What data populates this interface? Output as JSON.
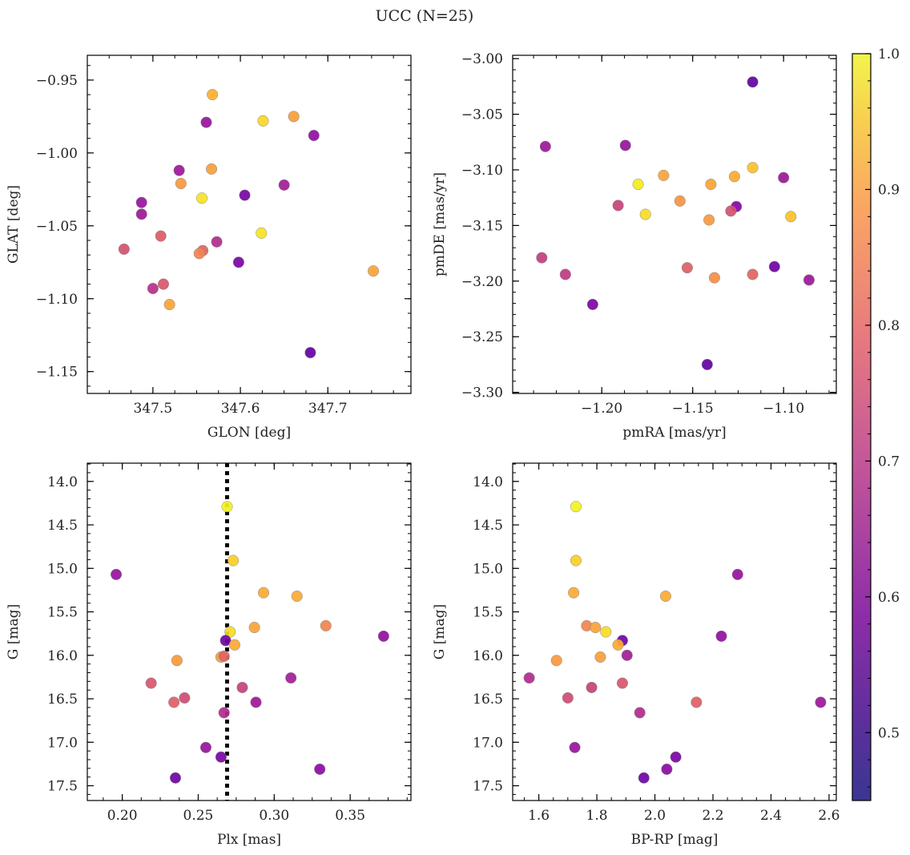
{
  "figure_title": "UCC (N=25)",
  "colorbar": {
    "range": [
      0.45,
      1.0
    ],
    "ticks": [
      "0.5",
      "0.6",
      "0.7",
      "0.8",
      "0.9",
      "1.0"
    ],
    "tick_values": [
      0.5,
      0.6,
      0.7,
      0.8,
      0.9,
      1.0
    ],
    "colormap": "plasma"
  },
  "chart_data": [
    {
      "type": "scatter",
      "xlabel": "GLON [deg]",
      "ylabel": "GLAT [deg]",
      "xlim": [
        347.425,
        347.795
      ],
      "ylim": [
        -1.165,
        -0.933
      ],
      "xticks": [
        347.5,
        347.6,
        347.7
      ],
      "xtick_labels": [
        "347.5",
        "347.6",
        "347.7"
      ],
      "yticks": [
        -0.95,
        -1.0,
        -1.05,
        -1.1,
        -1.15
      ],
      "ytick_labels": [
        "−0.95",
        "−1.00",
        "−1.05",
        "−1.10",
        "−1.15"
      ],
      "points": [
        {
          "x": 347.568,
          "y": -0.96,
          "c": 0.89
        },
        {
          "x": 347.661,
          "y": -0.975,
          "c": 0.86
        },
        {
          "x": 347.626,
          "y": -0.978,
          "c": 0.95
        },
        {
          "x": 347.561,
          "y": -0.979,
          "c": 0.58
        },
        {
          "x": 347.684,
          "y": -0.988,
          "c": 0.57
        },
        {
          "x": 347.567,
          "y": -1.011,
          "c": 0.86
        },
        {
          "x": 347.53,
          "y": -1.012,
          "c": 0.59
        },
        {
          "x": 347.532,
          "y": -1.021,
          "c": 0.85
        },
        {
          "x": 347.65,
          "y": -1.022,
          "c": 0.6
        },
        {
          "x": 347.605,
          "y": -1.029,
          "c": 0.52
        },
        {
          "x": 347.556,
          "y": -1.031,
          "c": 0.97
        },
        {
          "x": 347.487,
          "y": -1.034,
          "c": 0.58
        },
        {
          "x": 347.487,
          "y": -1.042,
          "c": 0.59
        },
        {
          "x": 347.624,
          "y": -1.055,
          "c": 0.97
        },
        {
          "x": 347.509,
          "y": -1.057,
          "c": 0.73
        },
        {
          "x": 347.573,
          "y": -1.061,
          "c": 0.63
        },
        {
          "x": 347.467,
          "y": -1.066,
          "c": 0.71
        },
        {
          "x": 347.557,
          "y": -1.067,
          "c": 0.75
        },
        {
          "x": 347.553,
          "y": -1.069,
          "c": 0.81
        },
        {
          "x": 347.598,
          "y": -1.075,
          "c": 0.53
        },
        {
          "x": 347.752,
          "y": -1.081,
          "c": 0.87
        },
        {
          "x": 347.512,
          "y": -1.09,
          "c": 0.72
        },
        {
          "x": 347.5,
          "y": -1.093,
          "c": 0.64
        },
        {
          "x": 347.519,
          "y": -1.104,
          "c": 0.87
        },
        {
          "x": 347.68,
          "y": -1.137,
          "c": 0.49
        }
      ]
    },
    {
      "type": "scatter",
      "xlabel": "pmRA [mas/yr]",
      "ylabel": "pmDE [mas/yr]",
      "xlim": [
        -1.249,
        -1.071
      ],
      "ylim": [
        -3.301,
        -2.997
      ],
      "xticks": [
        -1.2,
        -1.15,
        -1.1
      ],
      "xtick_labels": [
        "−1.20",
        "−1.15",
        "−1.10"
      ],
      "yticks": [
        -3.0,
        -3.05,
        -3.1,
        -3.15,
        -3.2,
        -3.25,
        -3.3
      ],
      "ytick_labels": [
        "−3.00",
        "−3.05",
        "−3.10",
        "−3.15",
        "−3.20",
        "−3.25",
        "−3.30"
      ],
      "points": [
        {
          "x": -1.117,
          "y": -3.021,
          "c": 0.49
        },
        {
          "x": -1.231,
          "y": -3.079,
          "c": 0.59
        },
        {
          "x": -1.187,
          "y": -3.078,
          "c": 0.58
        },
        {
          "x": -1.117,
          "y": -3.098,
          "c": 0.92
        },
        {
          "x": -1.127,
          "y": -3.106,
          "c": 0.88
        },
        {
          "x": -1.166,
          "y": -3.105,
          "c": 0.87
        },
        {
          "x": -1.1,
          "y": -3.107,
          "c": 0.59
        },
        {
          "x": -1.18,
          "y": -3.113,
          "c": 0.98
        },
        {
          "x": -1.14,
          "y": -3.113,
          "c": 0.87
        },
        {
          "x": -1.157,
          "y": -3.128,
          "c": 0.84
        },
        {
          "x": -1.191,
          "y": -3.132,
          "c": 0.68
        },
        {
          "x": -1.126,
          "y": -3.133,
          "c": 0.55
        },
        {
          "x": -1.129,
          "y": -3.137,
          "c": 0.71
        },
        {
          "x": -1.176,
          "y": -3.14,
          "c": 0.96
        },
        {
          "x": -1.096,
          "y": -3.142,
          "c": 0.92
        },
        {
          "x": -1.141,
          "y": -3.145,
          "c": 0.85
        },
        {
          "x": -1.233,
          "y": -3.179,
          "c": 0.67
        },
        {
          "x": -1.105,
          "y": -3.187,
          "c": 0.51
        },
        {
          "x": -1.153,
          "y": -3.188,
          "c": 0.74
        },
        {
          "x": -1.22,
          "y": -3.194,
          "c": 0.66
        },
        {
          "x": -1.117,
          "y": -3.194,
          "c": 0.75
        },
        {
          "x": -1.138,
          "y": -3.197,
          "c": 0.83
        },
        {
          "x": -1.086,
          "y": -3.199,
          "c": 0.59
        },
        {
          "x": -1.205,
          "y": -3.221,
          "c": 0.53
        },
        {
          "x": -1.142,
          "y": -3.275,
          "c": 0.49
        }
      ]
    },
    {
      "type": "scatter",
      "xlabel": "Plx [mas]",
      "ylabel": "G [mag]",
      "xlim": [
        0.177,
        0.39
      ],
      "ylim": [
        17.67,
        13.79
      ],
      "y_inverted": true,
      "vline": 0.269,
      "xticks": [
        0.2,
        0.25,
        0.3,
        0.35
      ],
      "xtick_labels": [
        "0.20",
        "0.25",
        "0.30",
        "0.35"
      ],
      "yticks": [
        14.0,
        14.5,
        15.0,
        15.5,
        16.0,
        16.5,
        17.0,
        17.5
      ],
      "ytick_labels": [
        "14.0",
        "14.5",
        "15.0",
        "15.5",
        "16.0",
        "16.5",
        "17.0",
        "17.5"
      ],
      "points": [
        {
          "x": 0.269,
          "y": 14.29,
          "c": 0.99
        },
        {
          "x": 0.273,
          "y": 14.91,
          "c": 0.94
        },
        {
          "x": 0.196,
          "y": 15.07,
          "c": 0.58
        },
        {
          "x": 0.293,
          "y": 15.28,
          "c": 0.88
        },
        {
          "x": 0.315,
          "y": 15.32,
          "c": 0.88
        },
        {
          "x": 0.287,
          "y": 15.68,
          "c": 0.87
        },
        {
          "x": 0.334,
          "y": 15.66,
          "c": 0.81
        },
        {
          "x": 0.372,
          "y": 15.78,
          "c": 0.57
        },
        {
          "x": 0.271,
          "y": 15.73,
          "c": 0.96
        },
        {
          "x": 0.268,
          "y": 15.83,
          "c": 0.51
        },
        {
          "x": 0.274,
          "y": 15.88,
          "c": 0.88
        },
        {
          "x": 0.236,
          "y": 16.06,
          "c": 0.85
        },
        {
          "x": 0.265,
          "y": 16.02,
          "c": 0.86
        },
        {
          "x": 0.267,
          "y": 16.01,
          "c": 0.75
        },
        {
          "x": 0.311,
          "y": 16.26,
          "c": 0.6
        },
        {
          "x": 0.219,
          "y": 16.32,
          "c": 0.72
        },
        {
          "x": 0.279,
          "y": 16.37,
          "c": 0.68
        },
        {
          "x": 0.241,
          "y": 16.49,
          "c": 0.7
        },
        {
          "x": 0.234,
          "y": 16.54,
          "c": 0.74
        },
        {
          "x": 0.288,
          "y": 16.54,
          "c": 0.59
        },
        {
          "x": 0.267,
          "y": 16.66,
          "c": 0.63
        },
        {
          "x": 0.255,
          "y": 17.06,
          "c": 0.58
        },
        {
          "x": 0.265,
          "y": 17.17,
          "c": 0.53
        },
        {
          "x": 0.33,
          "y": 17.31,
          "c": 0.56
        },
        {
          "x": 0.235,
          "y": 17.41,
          "c": 0.51
        }
      ]
    },
    {
      "type": "scatter",
      "xlabel": "BP-RP [mag]",
      "ylabel": "G [mag]",
      "xlim": [
        1.51,
        2.625
      ],
      "ylim": [
        17.67,
        13.79
      ],
      "y_inverted": true,
      "xticks": [
        1.6,
        1.8,
        2.0,
        2.2,
        2.4,
        2.6
      ],
      "xtick_labels": [
        "1.6",
        "1.8",
        "2.0",
        "2.2",
        "2.4",
        "2.6"
      ],
      "yticks": [
        14.0,
        14.5,
        15.0,
        15.5,
        16.0,
        16.5,
        17.0,
        17.5
      ],
      "ytick_labels": [
        "14.0",
        "14.5",
        "15.0",
        "15.5",
        "16.0",
        "16.5",
        "17.0",
        "17.5"
      ],
      "points": [
        {
          "x": 1.728,
          "y": 14.29,
          "c": 0.99
        },
        {
          "x": 1.728,
          "y": 14.91,
          "c": 0.94
        },
        {
          "x": 2.285,
          "y": 15.07,
          "c": 0.58
        },
        {
          "x": 1.72,
          "y": 15.28,
          "c": 0.88
        },
        {
          "x": 2.037,
          "y": 15.32,
          "c": 0.88
        },
        {
          "x": 1.765,
          "y": 15.66,
          "c": 0.81
        },
        {
          "x": 1.795,
          "y": 15.68,
          "c": 0.87
        },
        {
          "x": 1.831,
          "y": 15.73,
          "c": 0.96
        },
        {
          "x": 2.229,
          "y": 15.78,
          "c": 0.57
        },
        {
          "x": 1.888,
          "y": 15.83,
          "c": 0.51
        },
        {
          "x": 1.873,
          "y": 15.88,
          "c": 0.88
        },
        {
          "x": 1.904,
          "y": 16.0,
          "c": 0.6
        },
        {
          "x": 1.812,
          "y": 16.02,
          "c": 0.86
        },
        {
          "x": 1.661,
          "y": 16.06,
          "c": 0.85
        },
        {
          "x": 1.567,
          "y": 16.26,
          "c": 0.63
        },
        {
          "x": 1.888,
          "y": 16.32,
          "c": 0.72
        },
        {
          "x": 1.782,
          "y": 16.37,
          "c": 0.68
        },
        {
          "x": 1.7,
          "y": 16.49,
          "c": 0.7
        },
        {
          "x": 2.143,
          "y": 16.54,
          "c": 0.74
        },
        {
          "x": 2.571,
          "y": 16.54,
          "c": 0.59
        },
        {
          "x": 1.948,
          "y": 16.66,
          "c": 0.63
        },
        {
          "x": 1.724,
          "y": 17.06,
          "c": 0.58
        },
        {
          "x": 2.072,
          "y": 17.17,
          "c": 0.53
        },
        {
          "x": 2.041,
          "y": 17.31,
          "c": 0.56
        },
        {
          "x": 1.962,
          "y": 17.41,
          "c": 0.51
        }
      ]
    }
  ]
}
